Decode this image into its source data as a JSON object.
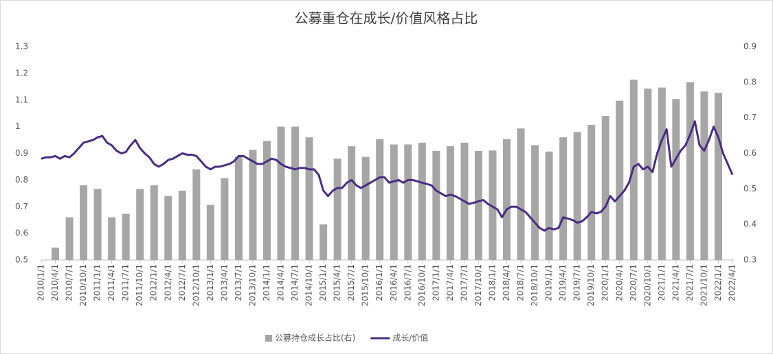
{
  "chart_data": {
    "type": "bar-line",
    "title": "公募重仓在成长/价值风格占比",
    "categories": [
      "2010/1/1",
      null,
      null,
      "2010/4/1",
      null,
      null,
      "2010/7/1",
      null,
      null,
      "2010/10/1",
      null,
      null,
      "2011/1/1",
      null,
      null,
      "2011/4/1",
      null,
      null,
      "2011/7/1",
      null,
      null,
      "2011/10/1",
      null,
      null,
      "2012/1/1",
      null,
      null,
      "2012/4/1",
      null,
      null,
      "2012/7/1",
      null,
      null,
      "2012/10/1",
      null,
      null,
      "2013/1/1",
      null,
      null,
      "2013/4/1",
      null,
      null,
      "2013/7/1",
      null,
      null,
      "2013/10/1",
      null,
      null,
      "2014/1/1",
      null,
      null,
      "2014/4/1",
      null,
      null,
      "2014/7/1",
      null,
      null,
      "2014/10/1",
      null,
      null,
      "2015/1/1",
      null,
      null,
      "2015/4/1",
      null,
      null,
      "2015/7/1",
      null,
      null,
      "2015/10/1",
      null,
      null,
      "2016/1/1",
      null,
      null,
      "2016/4/1",
      null,
      null,
      "2016/7/1",
      null,
      null,
      "2016/10/1",
      null,
      null,
      "2017/1/1",
      null,
      null,
      "2017/4/1",
      null,
      null,
      "2017/7/1",
      null,
      null,
      "2017/10/1",
      null,
      null,
      "2018/1/1",
      null,
      null,
      "2018/4/1",
      null,
      null,
      "2018/7/1",
      null,
      null,
      "2018/10/1",
      null,
      null,
      "2019/1/1",
      null,
      null,
      "2019/4/1",
      null,
      null,
      "2019/7/1",
      null,
      null,
      "2019/10/1",
      null,
      null,
      "2020/1/1",
      null,
      null,
      "2020/4/1",
      null,
      null,
      "2020/7/1",
      null,
      null,
      "2020/10/1",
      null,
      null,
      "2021/1/1",
      null,
      null,
      "2021/4/1",
      null,
      null,
      "2021/7/1",
      null,
      null,
      "2021/10/1",
      null,
      null,
      "2022/1/1",
      null,
      null,
      "2022/4/1"
    ],
    "series": [
      {
        "name": "公募持仓成长占比(右)",
        "type": "bar",
        "axis": "y2",
        "color": "#a6a6a6",
        "values": [
          null,
          null,
          null,
          0.335,
          null,
          null,
          0.42,
          null,
          null,
          0.51,
          null,
          null,
          0.5,
          null,
          null,
          0.42,
          null,
          null,
          0.43,
          null,
          null,
          0.5,
          null,
          null,
          0.51,
          null,
          null,
          0.48,
          null,
          null,
          0.495,
          null,
          null,
          0.555,
          null,
          null,
          0.455,
          null,
          null,
          0.53,
          null,
          null,
          0.59,
          null,
          null,
          0.61,
          null,
          null,
          0.635,
          null,
          null,
          0.675,
          null,
          null,
          0.675,
          null,
          null,
          0.645,
          null,
          null,
          0.4,
          null,
          null,
          0.585,
          null,
          null,
          0.62,
          null,
          null,
          0.59,
          null,
          null,
          0.64,
          null,
          null,
          0.625,
          null,
          null,
          0.625,
          null,
          null,
          0.63,
          null,
          null,
          0.607,
          null,
          null,
          0.62,
          null,
          null,
          0.63,
          null,
          null,
          0.607,
          null,
          null,
          0.608,
          null,
          null,
          0.64,
          null,
          null,
          0.67,
          null,
          null,
          0.623,
          null,
          null,
          0.605,
          null,
          null,
          0.645,
          null,
          null,
          0.66,
          null,
          null,
          0.68,
          null,
          null,
          0.705,
          null,
          null,
          0.748,
          null,
          null,
          0.807,
          null,
          null,
          0.782,
          null,
          null,
          0.785,
          null,
          null,
          0.753,
          null,
          null,
          0.8,
          null,
          null,
          0.774,
          null,
          null,
          0.77,
          null,
          null,
          null
        ]
      },
      {
        "name": "成长/价值",
        "type": "line",
        "color": "#4b2c84",
        "values": [
          0.88,
          0.885,
          0.885,
          0.89,
          0.88,
          0.89,
          0.885,
          0.9,
          0.92,
          0.94,
          0.945,
          0.95,
          0.96,
          0.965,
          0.94,
          0.93,
          0.91,
          0.9,
          0.905,
          0.93,
          0.95,
          0.92,
          0.9,
          0.885,
          0.86,
          0.85,
          0.86,
          0.875,
          0.88,
          0.89,
          0.9,
          0.895,
          0.895,
          0.89,
          0.87,
          0.85,
          0.84,
          0.85,
          0.85,
          0.855,
          0.86,
          0.87,
          0.89,
          0.89,
          0.88,
          0.87,
          0.86,
          0.86,
          0.87,
          0.88,
          0.875,
          0.86,
          0.85,
          0.845,
          0.84,
          0.845,
          0.845,
          0.84,
          0.84,
          0.82,
          0.76,
          0.74,
          0.76,
          0.77,
          0.77,
          0.79,
          0.8,
          0.78,
          0.77,
          0.78,
          0.79,
          0.8,
          0.81,
          0.81,
          0.79,
          0.795,
          0.8,
          0.79,
          0.8,
          0.8,
          0.795,
          0.79,
          0.785,
          0.78,
          0.76,
          0.75,
          0.74,
          0.745,
          0.74,
          0.73,
          0.72,
          0.71,
          0.715,
          0.72,
          0.725,
          0.71,
          0.7,
          0.69,
          0.66,
          0.69,
          0.7,
          0.7,
          0.69,
          0.68,
          0.66,
          0.64,
          0.62,
          0.61,
          0.62,
          0.615,
          0.62,
          0.66,
          0.655,
          0.65,
          0.64,
          0.645,
          0.66,
          0.68,
          0.675,
          0.68,
          0.7,
          0.74,
          0.72,
          0.74,
          0.76,
          0.79,
          0.85,
          0.86,
          0.84,
          0.85,
          0.83,
          0.9,
          0.95,
          0.99,
          0.85,
          0.88,
          0.91,
          0.93,
          0.97,
          1.02,
          0.93,
          0.91,
          0.95,
          1.0,
          0.96,
          0.9,
          0.86,
          0.82
        ]
      }
    ],
    "ylim": [
      0.5,
      1.3
    ],
    "yticks": [
      0.5,
      0.6,
      0.7,
      0.8,
      0.9,
      1,
      1.1,
      1.2,
      1.3
    ],
    "y2lim": [
      0.3,
      0.9
    ],
    "y2ticks": [
      0.3,
      0.4,
      0.5,
      0.6,
      0.7,
      0.8,
      0.9
    ],
    "grid": false,
    "legend": "bottom"
  }
}
